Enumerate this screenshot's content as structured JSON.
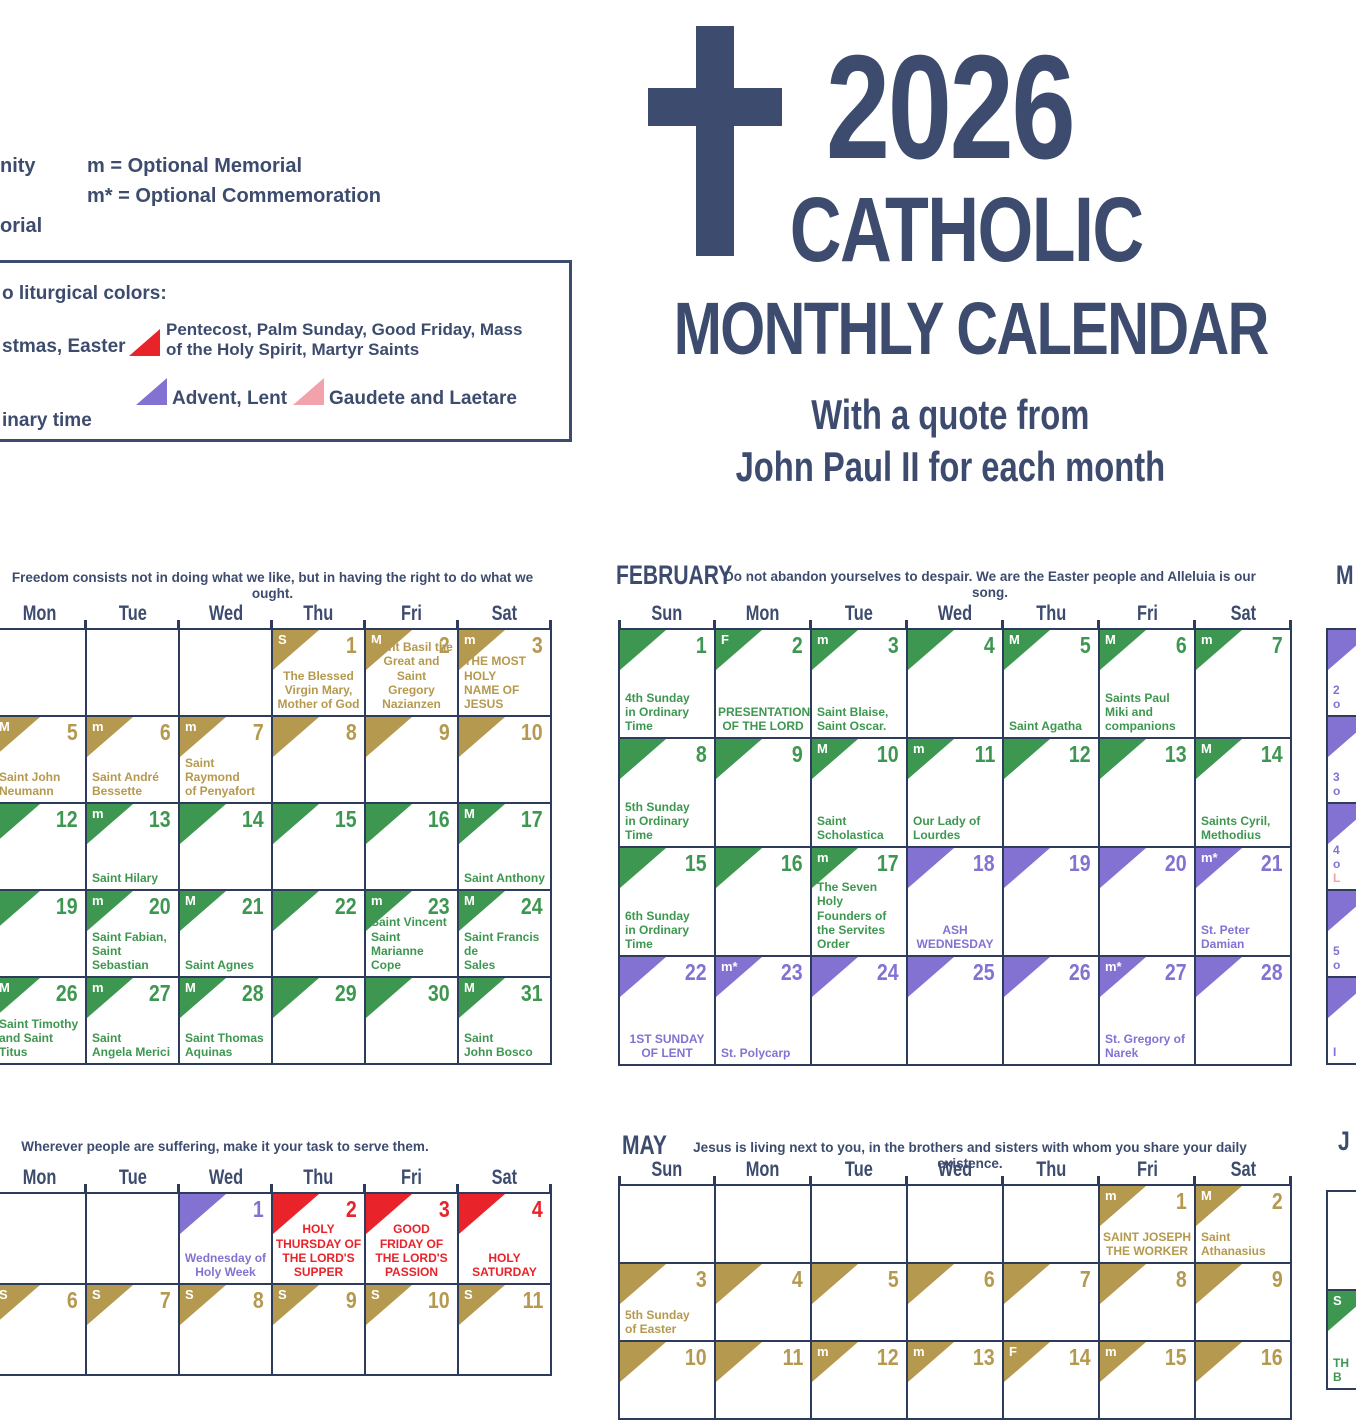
{
  "hero": {
    "year": "2026",
    "line2": "CATHOLIC",
    "line3": "MONTHLY CALENDAR",
    "subtitle1": "With a quote from",
    "subtitle2": "John Paul II for each month"
  },
  "legend": {
    "abbr_fragment_top": "nity",
    "optional_memorial": "m = Optional Memorial",
    "optional_commemoration": "m* = Optional Commemoration",
    "abbr_fragment_bottom": "orial",
    "colors_title_fragment": "o liturgical colors:",
    "white_fragment": "stmas, Easter",
    "red_label": "Pentecost, Palm Sunday, Good Friday, Mass\nof the Holy Spirit, Martyr Saints",
    "purple_label": "Advent, Lent",
    "pink_label": "Gaudete and Laetare"
  },
  "colors": {
    "navy": "#3d4c6e",
    "grid": "#2e3c5c",
    "gold": "#b5994e",
    "green": "#3e9750",
    "purple": "#8372d1",
    "red": "#e8232a",
    "pink": "#f2a2ab"
  },
  "months": {
    "jan": {
      "name": "",
      "quote": "Freedom consists not in doing what we like, but in having the right to do what we ought.",
      "day_headers": [
        "Mon",
        "Tue",
        "Wed",
        "Thu",
        "Fri",
        "Sat"
      ],
      "weeks": [
        [
          null,
          null,
          null,
          {
            "d": "1",
            "c": "gold",
            "b": "S",
            "t": "The Blessed\nVirgin Mary,\nMother of God",
            "a": "c"
          },
          {
            "d": "2",
            "c": "gold",
            "b": "M",
            "t": "Saint Basil the\nGreat and Saint\nGregory\nNazianzen",
            "a": "c"
          },
          {
            "d": "3",
            "c": "gold",
            "b": "m",
            "t": "THE MOST HOLY\nNAME OF JESUS"
          }
        ],
        [
          {
            "d": "5",
            "c": "gold",
            "b": "M",
            "t": "Saint John\nNeumann"
          },
          {
            "d": "6",
            "c": "gold",
            "b": "m",
            "t": "Saint André\nBessette"
          },
          {
            "d": "7",
            "c": "gold",
            "b": "m",
            "t": "Saint Raymond\nof Penyafort"
          },
          {
            "d": "8",
            "c": "gold"
          },
          {
            "d": "9",
            "c": "gold"
          },
          {
            "d": "10",
            "c": "gold"
          }
        ],
        [
          {
            "d": "12",
            "c": "green"
          },
          {
            "d": "13",
            "c": "green",
            "b": "m",
            "t": "Saint Hilary"
          },
          {
            "d": "14",
            "c": "green"
          },
          {
            "d": "15",
            "c": "green"
          },
          {
            "d": "16",
            "c": "green"
          },
          {
            "d": "17",
            "c": "green",
            "b": "M",
            "t": "Saint Anthony"
          }
        ],
        [
          {
            "d": "19",
            "c": "green"
          },
          {
            "d": "20",
            "c": "green",
            "b": "m",
            "t": "Saint Fabian,\nSaint Sebastian"
          },
          {
            "d": "21",
            "c": "green",
            "b": "M",
            "t": "Saint Agnes"
          },
          {
            "d": "22",
            "c": "green"
          },
          {
            "d": "23",
            "c": "green",
            "b": "m",
            "t": "Saint Vincent\nSaint\nMarianne Cope"
          },
          {
            "d": "24",
            "c": "green",
            "b": "M",
            "t": "Saint Francis de\nSales"
          }
        ],
        [
          {
            "d": "26",
            "c": "green",
            "b": "M",
            "t": "Saint Timothy\nand Saint Titus"
          },
          {
            "d": "27",
            "c": "green",
            "b": "m",
            "t": "Saint\nAngela Merici"
          },
          {
            "d": "28",
            "c": "green",
            "b": "M",
            "t": "Saint Thomas\nAquinas"
          },
          {
            "d": "29",
            "c": "green"
          },
          {
            "d": "30",
            "c": "green"
          },
          {
            "d": "31",
            "c": "green",
            "b": "M",
            "t": "Saint\nJohn Bosco"
          }
        ]
      ]
    },
    "feb": {
      "name": "FEBRUARY",
      "quote": "Do not abandon yourselves to despair. We are the Easter people and Alleluia is our song.",
      "day_headers": [
        "Sun",
        "Mon",
        "Tue",
        "Wed",
        "Thu",
        "Fri",
        "Sat"
      ],
      "weeks": [
        [
          {
            "d": "1",
            "c": "green",
            "t": "4th Sunday\nin Ordinary\nTime"
          },
          {
            "d": "2",
            "c": "green",
            "b": "F",
            "t": "PRESENTATION\nOF THE LORD",
            "a": "c"
          },
          {
            "d": "3",
            "c": "green",
            "b": "m",
            "t": "Saint Blaise,\nSaint Oscar."
          },
          {
            "d": "4",
            "c": "green"
          },
          {
            "d": "5",
            "c": "green",
            "b": "M",
            "t": "Saint Agatha"
          },
          {
            "d": "6",
            "c": "green",
            "b": "M",
            "t": "Saints Paul\nMiki and\ncompanions"
          },
          {
            "d": "7",
            "c": "green",
            "b": "m"
          }
        ],
        [
          {
            "d": "8",
            "c": "green",
            "t": "5th Sunday\nin Ordinary\nTime"
          },
          {
            "d": "9",
            "c": "green"
          },
          {
            "d": "10",
            "c": "green",
            "b": "M",
            "t": "Saint\nScholastica"
          },
          {
            "d": "11",
            "c": "green",
            "b": "m",
            "t": "Our Lady of\nLourdes"
          },
          {
            "d": "12",
            "c": "green"
          },
          {
            "d": "13",
            "c": "green"
          },
          {
            "d": "14",
            "c": "green",
            "b": "M",
            "t": "Saints Cyril,\nMethodius"
          }
        ],
        [
          {
            "d": "15",
            "c": "green",
            "t": "6th Sunday\nin Ordinary\nTime"
          },
          {
            "d": "16",
            "c": "green"
          },
          {
            "d": "17",
            "c": "green",
            "b": "m",
            "t": "The Seven\nHoly\nFounders of\nthe Servites\nOrder"
          },
          {
            "d": "18",
            "c": "purple",
            "t": "ASH\nWEDNESDAY",
            "a": "c"
          },
          {
            "d": "19",
            "c": "purple"
          },
          {
            "d": "20",
            "c": "purple"
          },
          {
            "d": "21",
            "c": "purple",
            "b": "m*",
            "t": "St. Peter\nDamian"
          }
        ],
        [
          {
            "d": "22",
            "c": "purple",
            "t": "1ST SUNDAY\nOF LENT",
            "a": "c"
          },
          {
            "d": "23",
            "c": "purple",
            "b": "m*",
            "t": "St. Polycarp"
          },
          {
            "d": "24",
            "c": "purple"
          },
          {
            "d": "25",
            "c": "purple"
          },
          {
            "d": "26",
            "c": "purple"
          },
          {
            "d": "27",
            "c": "purple",
            "b": "m*",
            "t": "St. Gregory of\nNarek"
          },
          {
            "d": "28",
            "c": "purple"
          }
        ]
      ]
    },
    "mar": {
      "name": "M",
      "weeks": [
        [
          {
            "c": "purple",
            "t": "2\no"
          }
        ],
        [
          {
            "c": "purple",
            "t": "3\no"
          }
        ],
        [
          {
            "c": "purple",
            "t": "4\no",
            "tp": "L"
          }
        ],
        [
          {
            "c": "purple",
            "t": "5\no"
          }
        ],
        [
          {
            "c": "purple",
            "t": "I"
          }
        ]
      ]
    },
    "apr": {
      "name": "",
      "quote": "Wherever people are suffering, make it your task to serve them.",
      "day_headers": [
        "Mon",
        "Tue",
        "Wed",
        "Thu",
        "Fri",
        "Sat"
      ],
      "weeks": [
        [
          null,
          null,
          {
            "d": "1",
            "c": "purple",
            "t": "Wednesday of\nHoly Week",
            "a": "c"
          },
          {
            "d": "2",
            "c": "red",
            "t": "HOLY\nTHURSDAY OF\nTHE LORD'S\nSUPPER",
            "a": "c"
          },
          {
            "d": "3",
            "c": "red",
            "t": "GOOD\nFRIDAY OF\nTHE LORD'S\nPASSION",
            "a": "c"
          },
          {
            "d": "4",
            "c": "red",
            "t": "HOLY\nSATURDAY",
            "a": "c"
          }
        ],
        [
          {
            "d": "6",
            "c": "gold",
            "b": "S"
          },
          {
            "d": "7",
            "c": "gold",
            "b": "S"
          },
          {
            "d": "8",
            "c": "gold",
            "b": "S"
          },
          {
            "d": "9",
            "c": "gold",
            "b": "S"
          },
          {
            "d": "10",
            "c": "gold",
            "b": "S"
          },
          {
            "d": "11",
            "c": "gold",
            "b": "S"
          }
        ]
      ]
    },
    "may": {
      "name": "MAY",
      "quote": "Jesus is living next to you, in the brothers and sisters with whom you share your daily existence.",
      "day_headers": [
        "Sun",
        "Mon",
        "Tue",
        "Wed",
        "Thu",
        "Fri",
        "Sat"
      ],
      "weeks": [
        [
          null,
          null,
          null,
          null,
          null,
          {
            "d": "1",
            "c": "gold",
            "b": "m",
            "t": "SAINT JOSEPH\nTHE WORKER",
            "a": "c"
          },
          {
            "d": "2",
            "c": "gold",
            "b": "M",
            "t": "Saint\nAthanasius"
          }
        ],
        [
          {
            "d": "3",
            "c": "gold",
            "t": "5th Sunday\nof Easter"
          },
          {
            "d": "4",
            "c": "gold"
          },
          {
            "d": "5",
            "c": "gold"
          },
          {
            "d": "6",
            "c": "gold"
          },
          {
            "d": "7",
            "c": "gold"
          },
          {
            "d": "8",
            "c": "gold"
          },
          {
            "d": "9",
            "c": "gold"
          }
        ],
        [
          {
            "d": "10",
            "c": "gold"
          },
          {
            "d": "11",
            "c": "gold"
          },
          {
            "d": "12",
            "c": "gold",
            "b": "m"
          },
          {
            "d": "13",
            "c": "gold",
            "b": "m"
          },
          {
            "d": "14",
            "c": "gold",
            "b": "F"
          },
          {
            "d": "15",
            "c": "gold",
            "b": "m"
          },
          {
            "d": "16",
            "c": "gold"
          }
        ]
      ]
    },
    "jun": {
      "name": "J",
      "weeks": [
        [
          null
        ],
        [
          {
            "c": "green",
            "b": "S",
            "t": "TH\nB"
          }
        ]
      ]
    }
  }
}
